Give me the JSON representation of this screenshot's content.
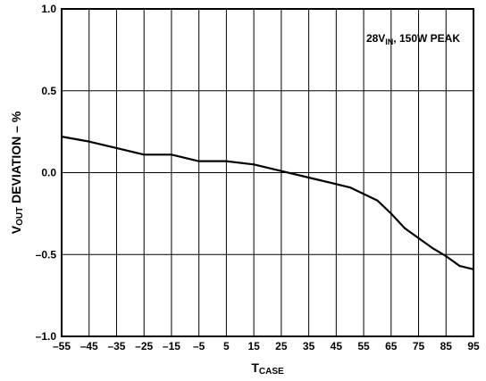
{
  "chart_data": {
    "type": "line",
    "xlabel": {
      "main": "T",
      "sub": "CASE"
    },
    "ylabel": {
      "main": "V",
      "sub": "OUT",
      "rest": " DEVIATION – %"
    },
    "annotation": {
      "pre": "28V",
      "sub": "IN",
      "post": ", 150W PEAK"
    },
    "xlim": [
      -55,
      95
    ],
    "ylim": [
      -1.0,
      1.0
    ],
    "x_ticks": [
      -55,
      -45,
      -35,
      -25,
      -15,
      -5,
      5,
      15,
      25,
      35,
      45,
      55,
      65,
      75,
      85,
      95
    ],
    "x_tick_labels": [
      "–55",
      "–45",
      "–35",
      "–25",
      "–15",
      "–5",
      "5",
      "15",
      "25",
      "35",
      "45",
      "55",
      "65",
      "75",
      "85",
      "95"
    ],
    "y_ticks": [
      1.0,
      0.5,
      0.0,
      -0.5,
      -1.0
    ],
    "y_tick_labels": [
      "1.0",
      "0.5",
      "0.0",
      "–0.5",
      "–1.0"
    ],
    "grid": true,
    "line_color": "#000000",
    "series": [
      {
        "x": [
          -55,
          -45,
          -40,
          -35,
          -25,
          -15,
          -5,
          5,
          15,
          25,
          35,
          45,
          50,
          55,
          60,
          65,
          70,
          75,
          80,
          85,
          90,
          95
        ],
        "y": [
          0.22,
          0.19,
          0.17,
          0.15,
          0.11,
          0.11,
          0.07,
          0.07,
          0.05,
          0.01,
          -0.03,
          -0.07,
          -0.09,
          -0.13,
          -0.17,
          -0.25,
          -0.34,
          -0.4,
          -0.46,
          -0.51,
          -0.57,
          -0.59
        ]
      }
    ]
  }
}
